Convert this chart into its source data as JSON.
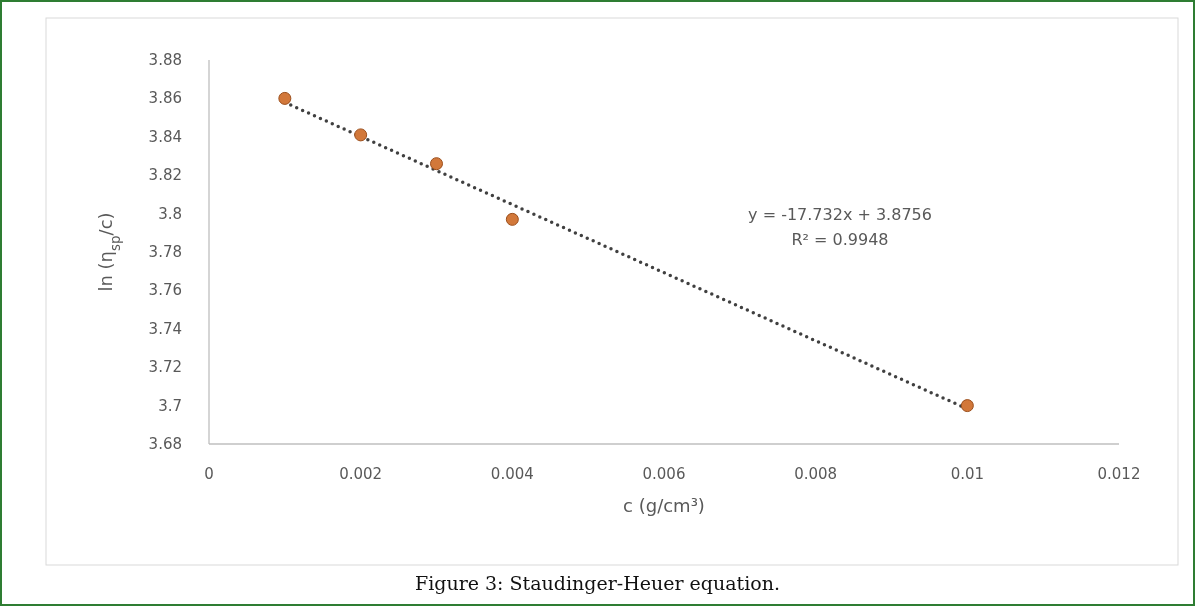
{
  "chart_data": {
    "type": "scatter",
    "title": "Figure 3: Staudinger-Heuer equation.",
    "xlabel": "c (g/cm³)",
    "ylabel": "ln (η$_{sp}$/c)",
    "annotations": [
      "y = -17.732x + 3.8756",
      "R² = 0.9948"
    ],
    "x": [
      0.001,
      0.002,
      0.003,
      0.004,
      0.01
    ],
    "series": [
      {
        "color": "#d2783a",
        "marker": "circle",
        "values": [
          3.86,
          3.841,
          3.826,
          3.797,
          3.7
        ]
      },
      {
        "type": "line",
        "color": "#404040",
        "line_style": "dotted",
        "x": [
          0.001,
          0.01
        ],
        "values": [
          3.8579,
          3.6983
        ]
      }
    ],
    "xlim": [
      0,
      0.012
    ],
    "xticks": [
      0,
      0.002,
      0.004,
      0.006,
      0.008,
      0.01,
      0.012
    ],
    "ylim": [
      3.68,
      3.88
    ],
    "yticks": [
      3.68,
      3.7,
      3.72,
      3.74,
      3.76,
      3.78,
      3.8,
      3.82,
      3.84,
      3.86,
      3.88
    ],
    "grid": false
  }
}
